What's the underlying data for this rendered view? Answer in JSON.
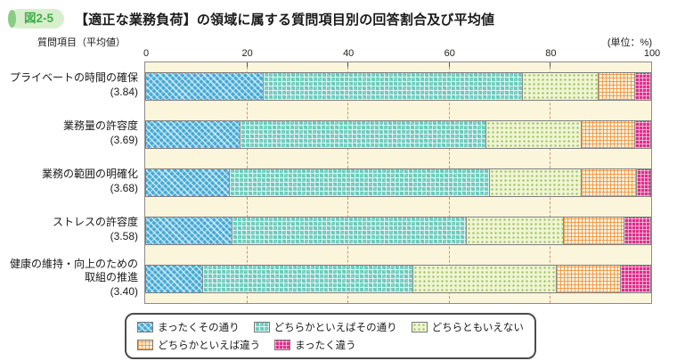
{
  "figure": {
    "badge": "図2-5",
    "title": "【適正な業務負荷】の領域に属する質問項目別の回答割合及び平均値"
  },
  "axis": {
    "question_label": "質問項目（平均値）",
    "unit_label": "(単位：%)",
    "ticks": [
      "0",
      "20",
      "40",
      "60",
      "80",
      "100"
    ]
  },
  "colors": {
    "accent_green": "#3fae49",
    "badge_bg": "#d8efcd",
    "plot_bg": "#fbf5dc",
    "gridline": "#c49a66",
    "series_blue": "#45aad6",
    "series_teal": "#68cabc",
    "series_green": "#9cc45a",
    "series_orange": "#ee9646",
    "series_magenta": "#e02e8c"
  },
  "chart_data": {
    "type": "bar",
    "stacked": true,
    "orientation": "horizontal",
    "title": "【適正な業務負荷】の領域に属する質問項目別の回答割合及び平均値",
    "xlabel": "(単位：%)",
    "xlim": [
      0,
      100
    ],
    "grid": "dashed vertical lines at 20/40/60/80",
    "legend_position": "bottom",
    "categories": [
      "プライベートの時間の確保",
      "業務量の許容度",
      "業務の範囲の明確化",
      "ストレスの許容度",
      "健康の維持・向上のための取組の推進"
    ],
    "category_labels_display": [
      "プライベートの時間の確保",
      "業務量の許容度",
      "業務の範囲の明確化",
      "ストレスの許容度",
      "健康の維持・向上のための\n取組の推進"
    ],
    "averages": [
      "3.84",
      "3.69",
      "3.68",
      "3.58",
      "3.40"
    ],
    "series": [
      {
        "name": "まったくその通り",
        "color": "#45aad6",
        "values": [
          23.2,
          18.6,
          16.5,
          17.0,
          11.1
        ]
      },
      {
        "name": "どちらかといえばその通り",
        "color": "#68cabc",
        "values": [
          51.4,
          48.8,
          51.5,
          46.4,
          41.8
        ]
      },
      {
        "name": "どちらともいえない",
        "color": "#9cc45a",
        "values": [
          14.9,
          18.9,
          18.3,
          19.2,
          28.3
        ]
      },
      {
        "name": "どちらかといえば違う",
        "color": "#ee9646",
        "values": [
          7.3,
          10.5,
          10.9,
          12.1,
          12.8
        ]
      },
      {
        "name": "まったく違う",
        "color": "#e02e8c",
        "values": [
          3.2,
          3.2,
          2.8,
          5.3,
          6.0
        ]
      }
    ],
    "legend_rows": [
      [
        0,
        1,
        2
      ],
      [
        3,
        4
      ]
    ]
  }
}
